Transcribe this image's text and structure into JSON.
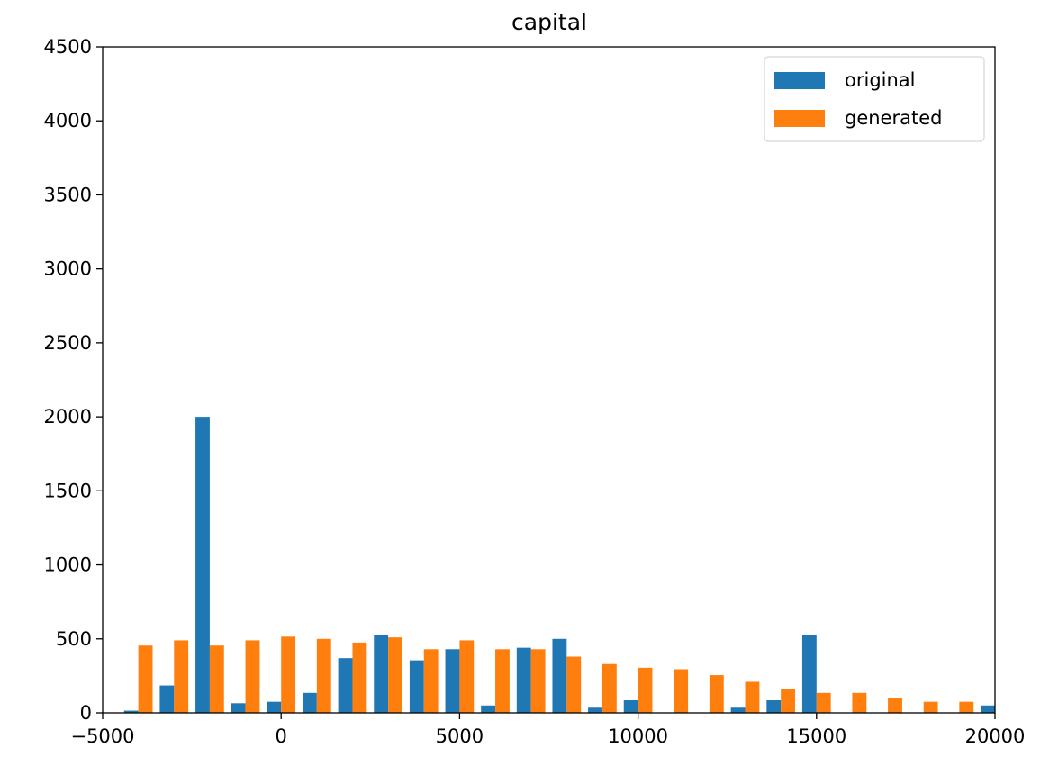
{
  "chart_data": {
    "type": "bar",
    "title": "capital",
    "xlabel": "",
    "ylabel": "",
    "xlim": [
      -5000,
      20000
    ],
    "ylim": [
      0,
      4500
    ],
    "x_ticks": [
      -5000,
      0,
      5000,
      10000,
      15000,
      20000
    ],
    "x_tick_labels": [
      "−5000",
      "0",
      "5000",
      "10000",
      "15000",
      "20000"
    ],
    "y_ticks": [
      0,
      500,
      1000,
      1500,
      2000,
      2500,
      3000,
      3500,
      4000,
      4500
    ],
    "y_tick_labels": [
      "0",
      "500",
      "1000",
      "1500",
      "2000",
      "2500",
      "3000",
      "3500",
      "4000",
      "4500"
    ],
    "grid": false,
    "legend_position": "top-right",
    "bin_start": -4500,
    "bin_width": 1000,
    "series": [
      {
        "name": "original",
        "color": "#1f77b4",
        "values": [
          15,
          185,
          2000,
          65,
          75,
          135,
          370,
          525,
          355,
          430,
          50,
          440,
          500,
          35,
          85,
          0,
          0,
          35,
          85,
          525,
          0,
          0,
          0,
          0,
          50
        ]
      },
      {
        "name": "generated",
        "color": "#ff7f0e",
        "values": [
          455,
          490,
          455,
          490,
          515,
          500,
          475,
          510,
          430,
          490,
          430,
          430,
          380,
          330,
          305,
          295,
          255,
          210,
          160,
          135,
          135,
          100,
          75,
          75,
          0
        ]
      }
    ]
  }
}
